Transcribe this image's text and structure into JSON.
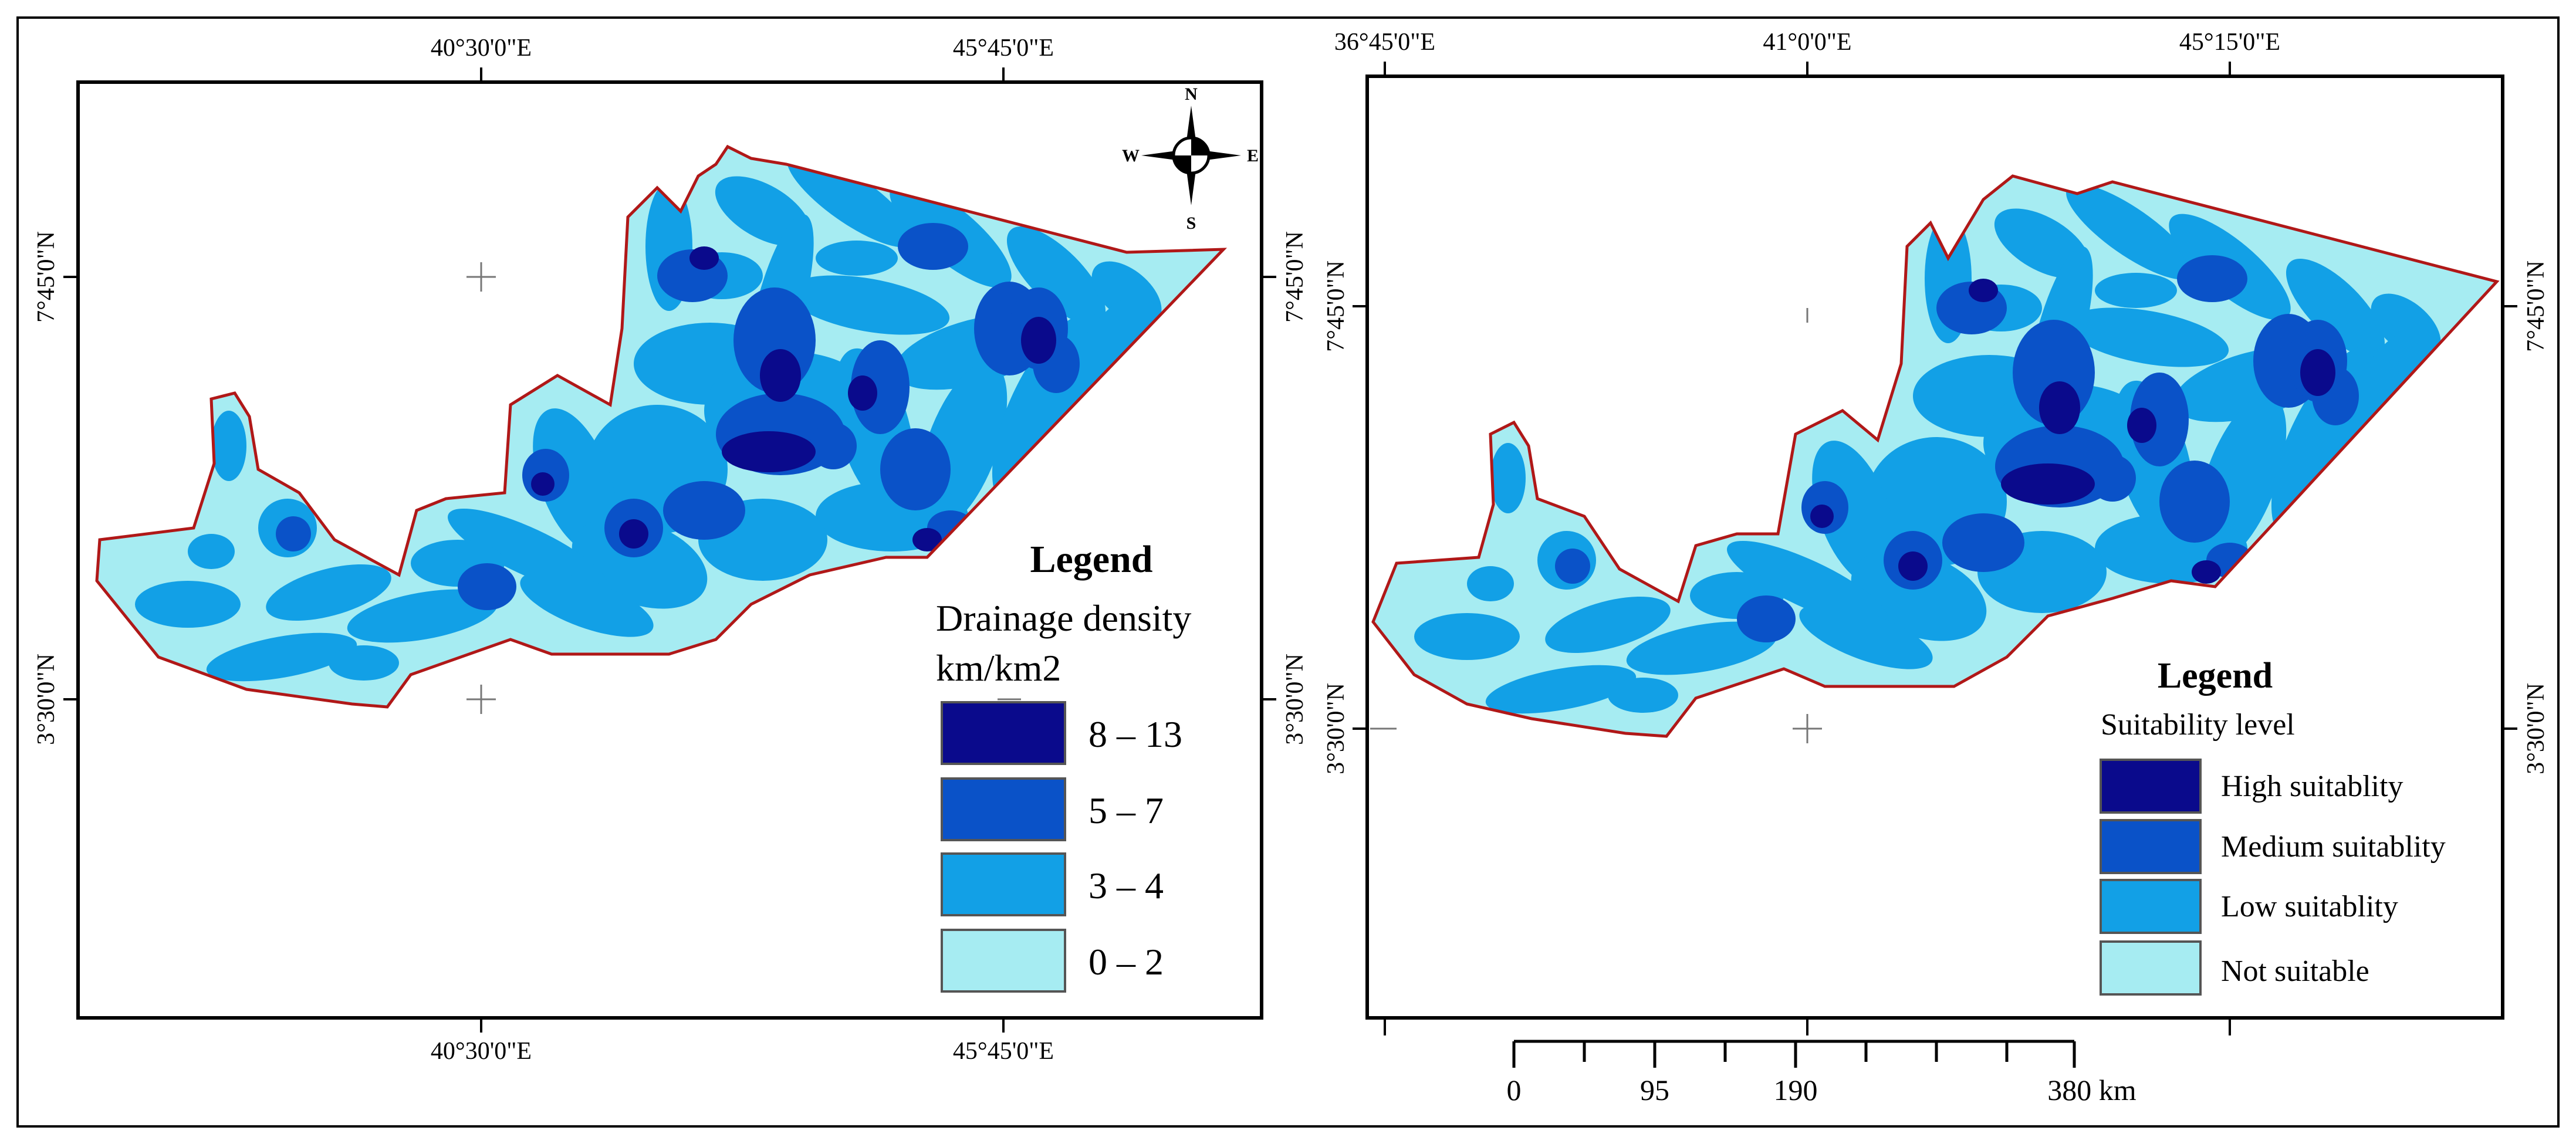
{
  "maps": {
    "left": {
      "top_ticks": [
        "40°30'0\"E",
        "45°45'0\"E"
      ],
      "bottom_ticks": [
        "40°30'0\"E",
        "45°45'0\"E"
      ],
      "left_ticks": [
        "7°45'0\"N",
        "3°30'0\"N"
      ],
      "right_ticks": [
        "7°45'0\"N",
        "3°30'0\"N"
      ],
      "north_arrow": {
        "n": "N",
        "s": "S",
        "e": "E",
        "w": "W"
      },
      "legend": {
        "title": "Legend",
        "subtitle_line1": "Drainage density",
        "subtitle_line2": "km/km2",
        "items": [
          {
            "label": "8 – 13",
            "color": "#0a0a8c"
          },
          {
            "label": "5 – 7",
            "color": "#0a52c8"
          },
          {
            "label": "3 – 4",
            "color": "#12a0e6"
          },
          {
            "label": "0 – 2",
            "color": "#a6ecf2"
          }
        ]
      }
    },
    "right": {
      "top_ticks": [
        "36°45'0\"E",
        "41°0'0\"E",
        "45°15'0\"E"
      ],
      "left_ticks": [
        "7°45'0\"N",
        "3°30'0\"N"
      ],
      "right_ticks": [
        "7°45'0\"N",
        "3°30'0\"N"
      ],
      "legend": {
        "title": "Legend",
        "subtitle": "Suitability level",
        "items": [
          {
            "label": "High suitablity",
            "color": "#0a0a8c"
          },
          {
            "label": "Medium suitablity",
            "color": "#0a52c8"
          },
          {
            "label": "Low suitablity",
            "color": "#12a0e6"
          },
          {
            "label": "Not suitable",
            "color": "#a6ecf2"
          }
        ]
      },
      "scale_bar": {
        "labels": [
          "0",
          "95",
          "190",
          "380 km"
        ]
      }
    }
  },
  "colors": {
    "boundary": "#b01818",
    "frame": "#000000"
  }
}
